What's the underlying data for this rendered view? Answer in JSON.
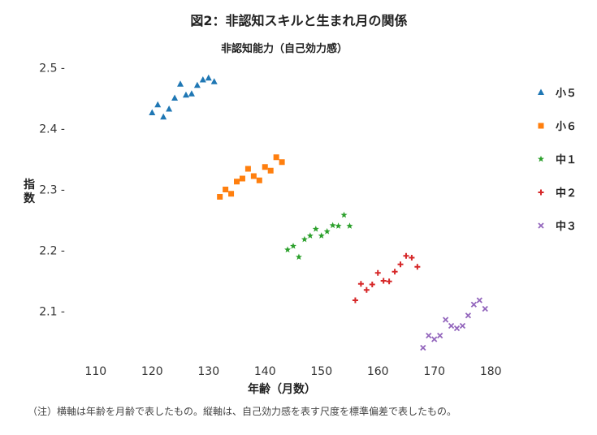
{
  "chart_data": {
    "type": "scatter",
    "title": "図2：非認知スキルと生まれ月の関係",
    "subtitle": "非認知能力（自己効力感）",
    "xlabel": "年齢（月数）",
    "ylabel": "指数",
    "xlim": [
      106,
      184
    ],
    "ylim": [
      2.03,
      2.51
    ],
    "xticks": [
      110,
      120,
      130,
      140,
      150,
      160,
      170,
      180
    ],
    "yticks": [
      2.1,
      2.2,
      2.3,
      2.4,
      2.5
    ],
    "grid": false,
    "legend_position": "right",
    "series": [
      {
        "name": "小５",
        "marker": "triangle",
        "color": "#1f77b4",
        "points": [
          [
            120,
            2.426
          ],
          [
            121,
            2.439
          ],
          [
            122,
            2.419
          ],
          [
            123,
            2.432
          ],
          [
            124,
            2.45
          ],
          [
            125,
            2.473
          ],
          [
            126,
            2.455
          ],
          [
            127,
            2.457
          ],
          [
            128,
            2.471
          ],
          [
            129,
            2.48
          ],
          [
            130,
            2.483
          ],
          [
            131,
            2.477
          ]
        ]
      },
      {
        "name": "小６",
        "marker": "square",
        "color": "#ff7f0e",
        "points": [
          [
            132,
            2.288
          ],
          [
            133,
            2.3
          ],
          [
            134,
            2.293
          ],
          [
            135,
            2.313
          ],
          [
            136,
            2.318
          ],
          [
            137,
            2.334
          ],
          [
            138,
            2.322
          ],
          [
            139,
            2.315
          ],
          [
            140,
            2.337
          ],
          [
            141,
            2.331
          ],
          [
            142,
            2.353
          ],
          [
            143,
            2.345
          ]
        ]
      },
      {
        "name": "中１",
        "marker": "star",
        "color": "#2ca02c",
        "points": [
          [
            144,
            2.201
          ],
          [
            145,
            2.207
          ],
          [
            146,
            2.189
          ],
          [
            147,
            2.218
          ],
          [
            148,
            2.224
          ],
          [
            149,
            2.235
          ],
          [
            150,
            2.224
          ],
          [
            151,
            2.231
          ],
          [
            152,
            2.241
          ],
          [
            153,
            2.24
          ],
          [
            154,
            2.258
          ],
          [
            155,
            2.24
          ]
        ]
      },
      {
        "name": "中２",
        "marker": "plus",
        "color": "#d62728",
        "points": [
          [
            156,
            2.118
          ],
          [
            157,
            2.145
          ],
          [
            158,
            2.135
          ],
          [
            159,
            2.144
          ],
          [
            160,
            2.163
          ],
          [
            161,
            2.15
          ],
          [
            162,
            2.149
          ],
          [
            163,
            2.165
          ],
          [
            164,
            2.177
          ],
          [
            165,
            2.191
          ],
          [
            166,
            2.188
          ],
          [
            167,
            2.173
          ]
        ]
      },
      {
        "name": "中３",
        "marker": "x",
        "color": "#9467bd",
        "points": [
          [
            168,
            2.04
          ],
          [
            169,
            2.06
          ],
          [
            170,
            2.054
          ],
          [
            171,
            2.06
          ],
          [
            172,
            2.086
          ],
          [
            173,
            2.076
          ],
          [
            174,
            2.072
          ],
          [
            175,
            2.076
          ],
          [
            176,
            2.093
          ],
          [
            177,
            2.111
          ],
          [
            178,
            2.118
          ],
          [
            179,
            2.104
          ]
        ]
      }
    ]
  },
  "footnote": "（注）横軸は年齢を月齢で表したもの。縦軸は、自己効力感を表す尺度を標準偏差で表したもの。"
}
